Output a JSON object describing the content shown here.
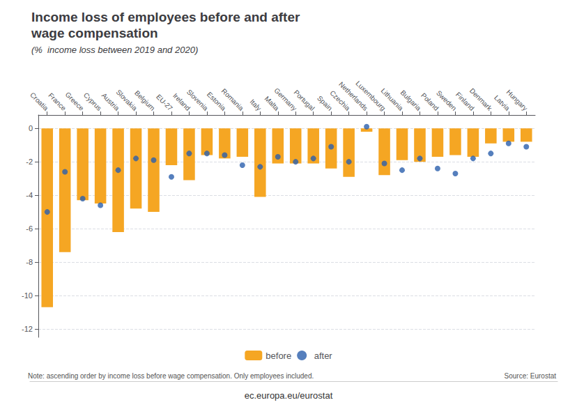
{
  "chart_data": {
    "type": "bar",
    "title": "Income loss of employees before and after\nwage compensation",
    "subtitle": "(%  income loss between 2019 and 2020)",
    "categories": [
      "Croatia",
      "France",
      "Greece",
      "Cyprus",
      "Austria",
      "Slovakia",
      "Belgium",
      "EU-27",
      "Ireland",
      "Slovenia",
      "Estonia",
      "Romania",
      "Italy",
      "Malta",
      "Germany",
      "Portugal",
      "Spain",
      "Czechia",
      "Netherlands",
      "Luxembourg",
      "Lithuania",
      "Bulgaria",
      "Poland",
      "Sweden",
      "Finland",
      "Denmark",
      "Latvia",
      "Hungary"
    ],
    "series": [
      {
        "name": "before",
        "type": "bar",
        "color": "#F5A623",
        "values": [
          -10.7,
          -7.4,
          -4.3,
          -4.5,
          -6.2,
          -4.8,
          -5.0,
          -2.2,
          -3.1,
          -1.6,
          -1.8,
          -1.7,
          -4.1,
          -2.1,
          -2.1,
          -2.1,
          -2.4,
          -2.9,
          -0.2,
          -2.8,
          -1.9,
          -2.0,
          -1.7,
          -1.6,
          -1.7,
          -0.9,
          -0.8,
          -0.8
        ]
      },
      {
        "name": "after",
        "type": "scatter",
        "marker": "circle",
        "color": "#2B5FAC",
        "values": [
          -5.0,
          -2.6,
          -4.2,
          -4.6,
          -2.5,
          -1.8,
          -1.9,
          -2.9,
          -1.5,
          -1.5,
          -1.6,
          -2.2,
          -2.3,
          -1.7,
          -2.0,
          -1.8,
          -1.1,
          -2.0,
          0.1,
          -2.1,
          -2.5,
          -1.8,
          -2.4,
          -2.7,
          -1.8,
          -1.5,
          -0.9,
          -1.1
        ]
      }
    ],
    "ylim": [
      -12.5,
      0.8
    ],
    "yticks": [
      0,
      -2,
      -4,
      -6,
      -8,
      -10,
      -12
    ],
    "grid": true,
    "legend": "bottom",
    "annotations": [
      "Note: ascending order by income loss before wage compensation. Only employees included.",
      "Source: Eurostat",
      "ec.europa.eu/eurostat"
    ]
  }
}
